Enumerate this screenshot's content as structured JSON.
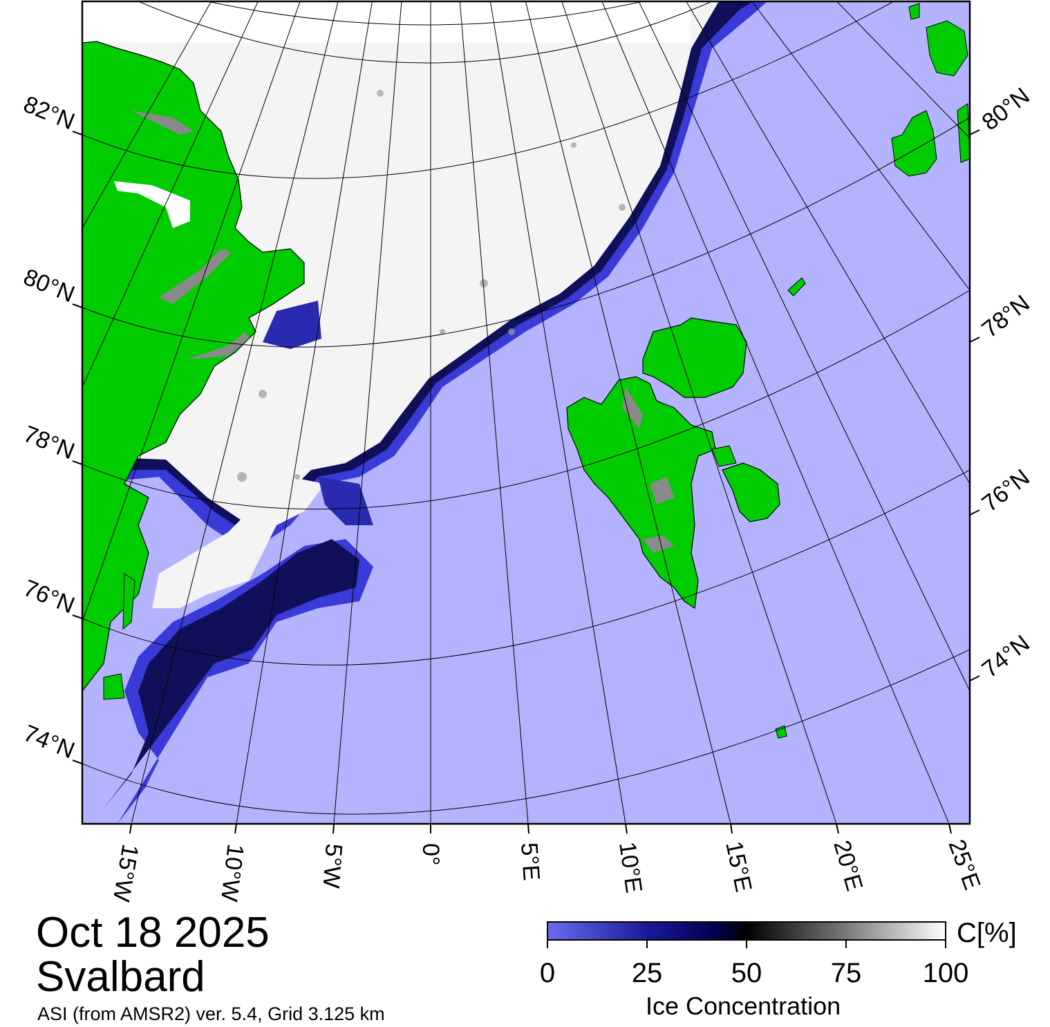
{
  "header": {
    "date": "Oct 18 2025",
    "region": "Svalbard",
    "product": "ASI (from AMSR2) ver. 5.4,  Grid 3.125 km"
  },
  "map": {
    "projection": "polar-stereographic",
    "colors": {
      "open_water": "#b3b3ff",
      "land": "#00cc00",
      "land_ice_edge": "#8a8a8a",
      "ice_full": "#ffffff",
      "frame": "#000000",
      "graticule": "#000000"
    },
    "latitude_labels_left": [
      "82°N",
      "80°N",
      "78°N",
      "76°N",
      "74°N"
    ],
    "latitude_labels_right": [
      "80°N",
      "78°N",
      "76°N",
      "74°N"
    ],
    "longitude_labels": [
      "15°W",
      "10°W",
      "5°W",
      "0°",
      "5°E",
      "10°E",
      "15°E",
      "20°E",
      "25°E"
    ]
  },
  "colorbar": {
    "label": "Ice Concentration",
    "unit": "C[%]",
    "ticks": [
      "0",
      "25",
      "50",
      "75",
      "100"
    ],
    "range": [
      0,
      100
    ],
    "stops": [
      "#6b6bf0",
      "#000060",
      "#000000",
      "#ffffff"
    ]
  }
}
